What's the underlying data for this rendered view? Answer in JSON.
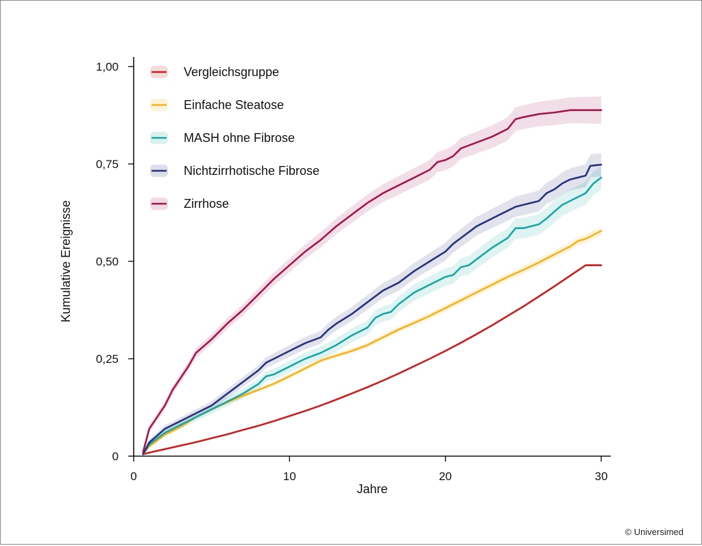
{
  "credit": "© Universimed",
  "chart_data": {
    "type": "line",
    "xlabel": "Jahre",
    "ylabel": "Kumulative Ereignisse",
    "xlim": [
      0,
      30
    ],
    "ylim": [
      0,
      1
    ],
    "x_ticks": [
      0,
      10,
      20,
      30
    ],
    "x_tick_labels": [
      "0",
      "10",
      "20",
      "30"
    ],
    "y_ticks": [
      0,
      0.25,
      0.5,
      0.75,
      1.0
    ],
    "y_tick_labels": [
      "0",
      "0,25",
      "0,50",
      "0,75",
      "1,00"
    ],
    "grid": false,
    "legend_position": "top-left",
    "confidence_bands": true,
    "series": [
      {
        "name": "Vergleichsgruppe",
        "color": "#c8201e",
        "band": 0.003,
        "x": [
          0.6,
          1,
          2,
          3,
          4,
          5,
          6,
          7,
          8,
          9,
          10,
          11,
          12,
          13,
          14,
          15,
          16,
          17,
          18,
          19,
          20,
          21,
          22,
          23,
          24,
          25,
          26,
          27,
          28,
          29,
          30
        ],
        "y": [
          0.005,
          0.009,
          0.018,
          0.027,
          0.036,
          0.046,
          0.056,
          0.067,
          0.078,
          0.09,
          0.103,
          0.116,
          0.13,
          0.145,
          0.161,
          0.177,
          0.194,
          0.212,
          0.231,
          0.25,
          0.27,
          0.291,
          0.313,
          0.336,
          0.36,
          0.384,
          0.41,
          0.436,
          0.463,
          0.49,
          0.49
        ]
      },
      {
        "name": "Einfache Steatose",
        "color": "#f5b21b",
        "band": 0.012,
        "x": [
          0.6,
          1,
          1.5,
          2,
          2.5,
          3,
          4,
          5,
          6,
          7,
          8,
          9,
          10,
          11,
          12,
          12.5,
          13,
          14,
          15,
          16,
          17,
          18,
          19,
          20,
          21,
          22,
          23,
          24,
          25,
          26,
          27,
          28,
          28.5,
          29,
          30
        ],
        "y": [
          0.005,
          0.025,
          0.04,
          0.055,
          0.065,
          0.075,
          0.1,
          0.12,
          0.138,
          0.155,
          0.17,
          0.186,
          0.205,
          0.225,
          0.245,
          0.252,
          0.258,
          0.27,
          0.285,
          0.305,
          0.325,
          0.342,
          0.36,
          0.38,
          0.4,
          0.42,
          0.44,
          0.46,
          0.478,
          0.497,
          0.518,
          0.538,
          0.552,
          0.558,
          0.578
        ]
      },
      {
        "name": "MASH ohne Fibrose",
        "color": "#1aa7a4",
        "band": 0.03,
        "x": [
          0.6,
          1,
          2,
          3,
          4,
          5,
          6,
          7,
          8,
          8.5,
          9,
          10,
          11,
          12,
          13,
          14,
          15,
          15.5,
          16,
          16.5,
          17,
          18,
          19,
          20,
          20.5,
          21,
          21.5,
          22,
          22.5,
          23,
          24,
          24.5,
          25,
          26,
          26.5,
          27,
          27.5,
          28,
          29,
          29.5,
          30
        ],
        "y": [
          0.005,
          0.03,
          0.06,
          0.08,
          0.1,
          0.12,
          0.14,
          0.16,
          0.185,
          0.205,
          0.21,
          0.23,
          0.25,
          0.265,
          0.285,
          0.31,
          0.33,
          0.355,
          0.365,
          0.37,
          0.39,
          0.42,
          0.44,
          0.46,
          0.465,
          0.485,
          0.49,
          0.505,
          0.52,
          0.535,
          0.56,
          0.585,
          0.585,
          0.595,
          0.61,
          0.628,
          0.645,
          0.655,
          0.675,
          0.7,
          0.715
        ]
      },
      {
        "name": "Nichtzirrhotische Fibrose",
        "color": "#27337a",
        "band": 0.03,
        "x": [
          0.6,
          1,
          2,
          3,
          4,
          5,
          6,
          7,
          8,
          8.5,
          9,
          10,
          11,
          12,
          12.5,
          13,
          14,
          15,
          16,
          17,
          17.5,
          18,
          19,
          20,
          20.5,
          21,
          21.5,
          22,
          22.5,
          23,
          23.5,
          24,
          24.5,
          25,
          26,
          26.5,
          27,
          27.5,
          28,
          29,
          29.3,
          30
        ],
        "y": [
          0.005,
          0.035,
          0.07,
          0.09,
          0.11,
          0.13,
          0.16,
          0.19,
          0.22,
          0.24,
          0.25,
          0.27,
          0.29,
          0.305,
          0.325,
          0.34,
          0.365,
          0.395,
          0.425,
          0.445,
          0.46,
          0.475,
          0.5,
          0.525,
          0.545,
          0.56,
          0.575,
          0.59,
          0.6,
          0.61,
          0.62,
          0.63,
          0.64,
          0.645,
          0.655,
          0.675,
          0.685,
          0.7,
          0.71,
          0.72,
          0.745,
          0.748
        ]
      },
      {
        "name": "Zirrhose",
        "color": "#a3174f",
        "band": 0.035,
        "x": [
          0.6,
          0.8,
          1,
          1.5,
          2,
          2.5,
          3,
          3.5,
          4,
          5,
          6,
          7,
          8,
          9,
          10,
          11,
          12,
          13,
          14,
          15,
          16,
          17,
          17.5,
          18,
          19,
          19.5,
          20,
          20.5,
          21,
          22,
          23,
          24,
          24.5,
          25,
          26,
          27,
          27.5,
          28,
          29,
          30
        ],
        "y": [
          0.01,
          0.04,
          0.07,
          0.1,
          0.13,
          0.17,
          0.2,
          0.23,
          0.265,
          0.3,
          0.34,
          0.375,
          0.415,
          0.455,
          0.49,
          0.525,
          0.555,
          0.59,
          0.62,
          0.65,
          0.675,
          0.695,
          0.705,
          0.715,
          0.735,
          0.755,
          0.76,
          0.77,
          0.79,
          0.805,
          0.82,
          0.84,
          0.865,
          0.87,
          0.878,
          0.882,
          0.885,
          0.888,
          0.888,
          0.888
        ]
      }
    ]
  }
}
